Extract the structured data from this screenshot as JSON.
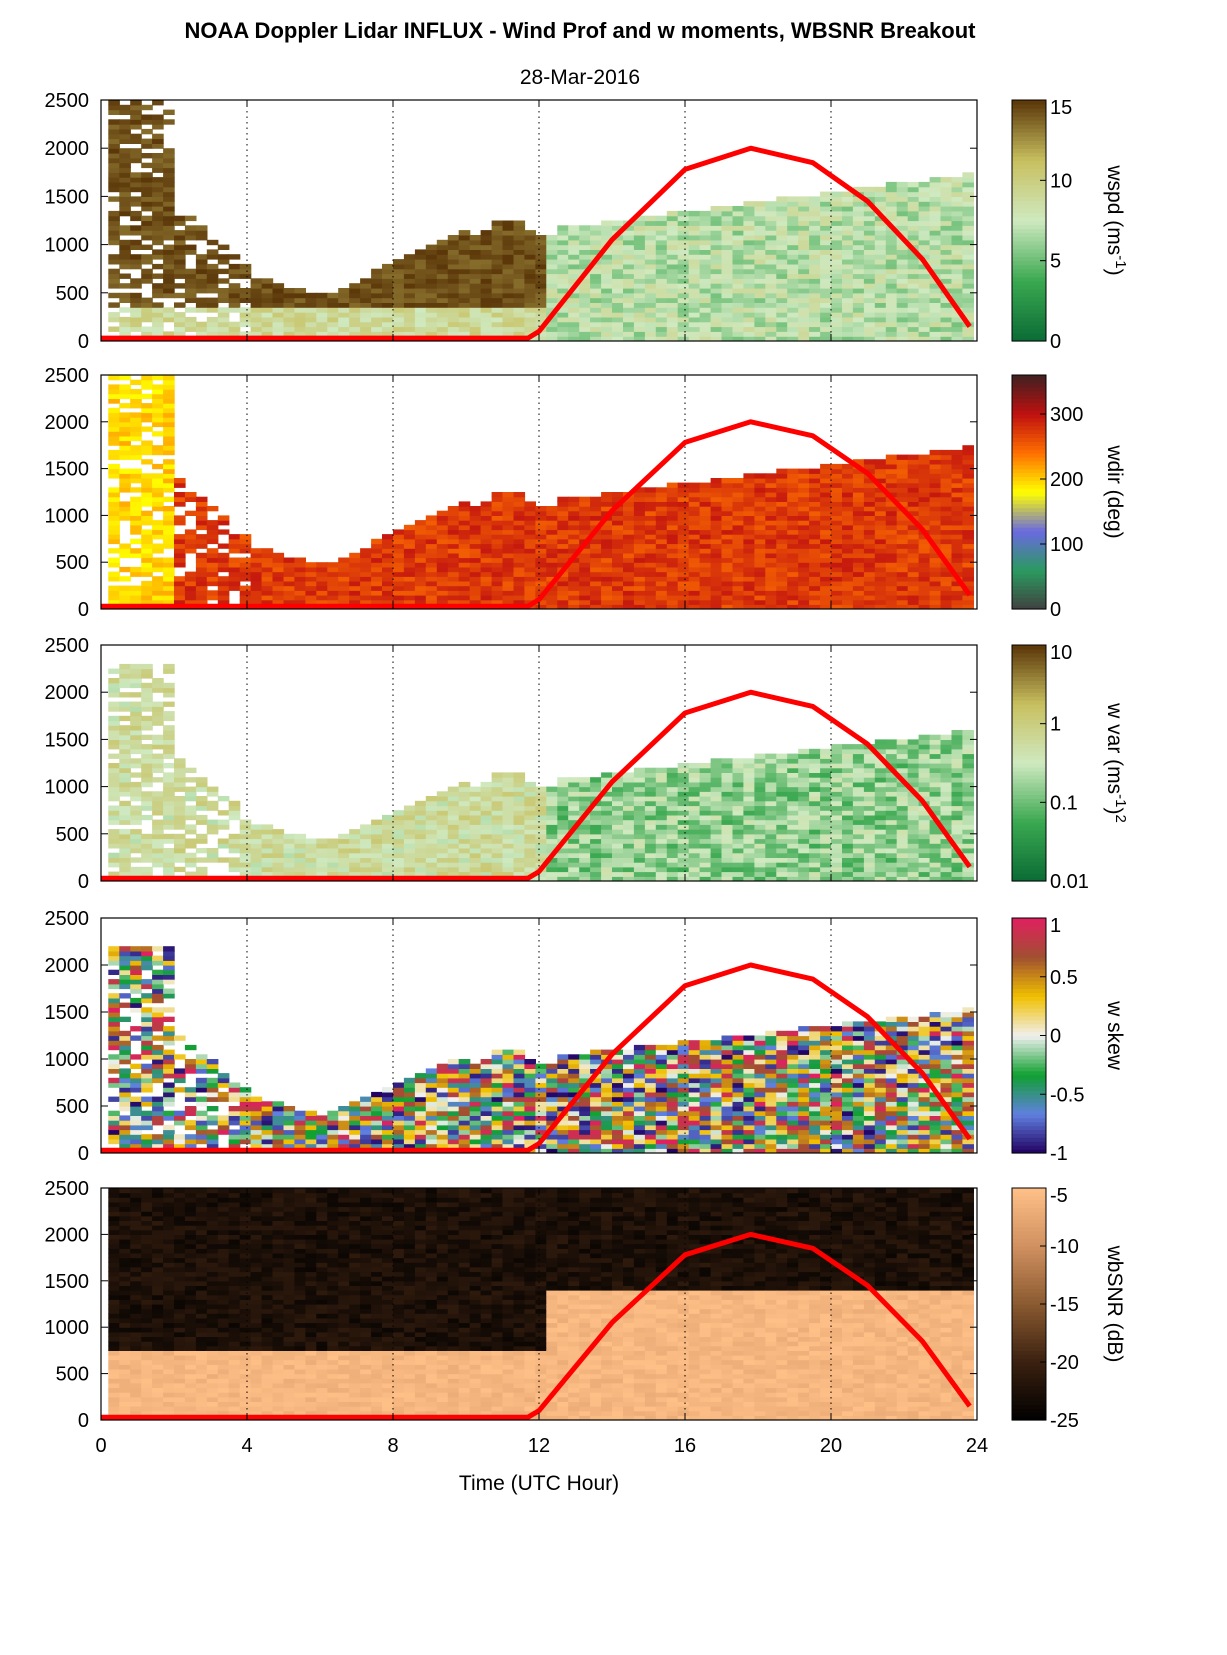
{
  "title": "NOAA Doppler Lidar INFLUX - Wind Prof and w moments, WBSNR Breakout",
  "date": "28-Mar-2016",
  "chart_data": {
    "type": "heatmap",
    "xlabel": "Time (UTC Hour)",
    "xlim": [
      0,
      24
    ],
    "xticks": [
      "0",
      "4",
      "8",
      "12",
      "16",
      "20",
      "24"
    ],
    "ylim": [
      0,
      2500
    ],
    "yticks": [
      "0",
      "500",
      "1000",
      "1500",
      "2000",
      "2500"
    ],
    "grid": "dotted vertical lines at 4 h intervals",
    "overlay_line": {
      "color": "#ff0000",
      "description_points": [
        [
          0,
          30
        ],
        [
          11.7,
          30
        ],
        [
          12,
          100
        ],
        [
          14,
          1050
        ],
        [
          16,
          1780
        ],
        [
          17.8,
          2000
        ],
        [
          19.5,
          1850
        ],
        [
          21,
          1450
        ],
        [
          22.5,
          850
        ],
        [
          23.8,
          150
        ]
      ]
    },
    "panels": [
      {
        "name": "wspd",
        "colorbar_label": "wspd (ms",
        "colorbar_sup": "-1",
        "colorbar_suffix": ")",
        "colorbar_ticks": [
          "15",
          "10",
          "5",
          "0"
        ],
        "colorbar_range": [
          0,
          15
        ],
        "colors": [
          "#0a6b35",
          "#3aa850",
          "#cfe9c0",
          "#c8c060",
          "#5a3508"
        ]
      },
      {
        "name": "wdir",
        "colorbar_label": "wdir (deg)",
        "colorbar_sup": "",
        "colorbar_suffix": "",
        "colorbar_ticks": [
          "300",
          "200",
          "100",
          "0"
        ],
        "colorbar_range": [
          0,
          360
        ],
        "colors": [
          "#404040",
          "#2a9a60",
          "#6a6ae0",
          "#ffff00",
          "#ff7000",
          "#c01010",
          "#402020"
        ]
      },
      {
        "name": "wvar",
        "colorbar_label": "w var (ms",
        "colorbar_sup": "-1",
        "colorbar_suffix": ")",
        "colorbar_sup2": "2",
        "colorbar_ticks": [
          "10",
          "1",
          "0.1",
          "0.01"
        ],
        "colorbar_range": [
          0.01,
          10
        ],
        "colors": [
          "#0a6b35",
          "#3aa850",
          "#cfe9c0",
          "#c8c060",
          "#5a3508"
        ]
      },
      {
        "name": "wskew",
        "colorbar_label": "w skew",
        "colorbar_sup": "",
        "colorbar_suffix": "",
        "colorbar_ticks": [
          "1",
          "0.5",
          "0",
          "-0.5",
          "-1"
        ],
        "colorbar_range": [
          -1,
          1
        ],
        "colors": [
          "#200060",
          "#6080e0",
          "#10a030",
          "#f0f0f0",
          "#f0c000",
          "#a05030",
          "#e02060"
        ]
      },
      {
        "name": "wbSNR",
        "colorbar_label": "wbSNR (dB)",
        "colorbar_sup": "",
        "colorbar_suffix": "",
        "colorbar_ticks": [
          "-5",
          "-10",
          "-15",
          "-20",
          "-25"
        ],
        "colorbar_range": [
          -25,
          -5
        ],
        "colors": [
          "#000000",
          "#3a2010",
          "#8a5a30",
          "#d09060",
          "#ffc088"
        ]
      }
    ]
  }
}
